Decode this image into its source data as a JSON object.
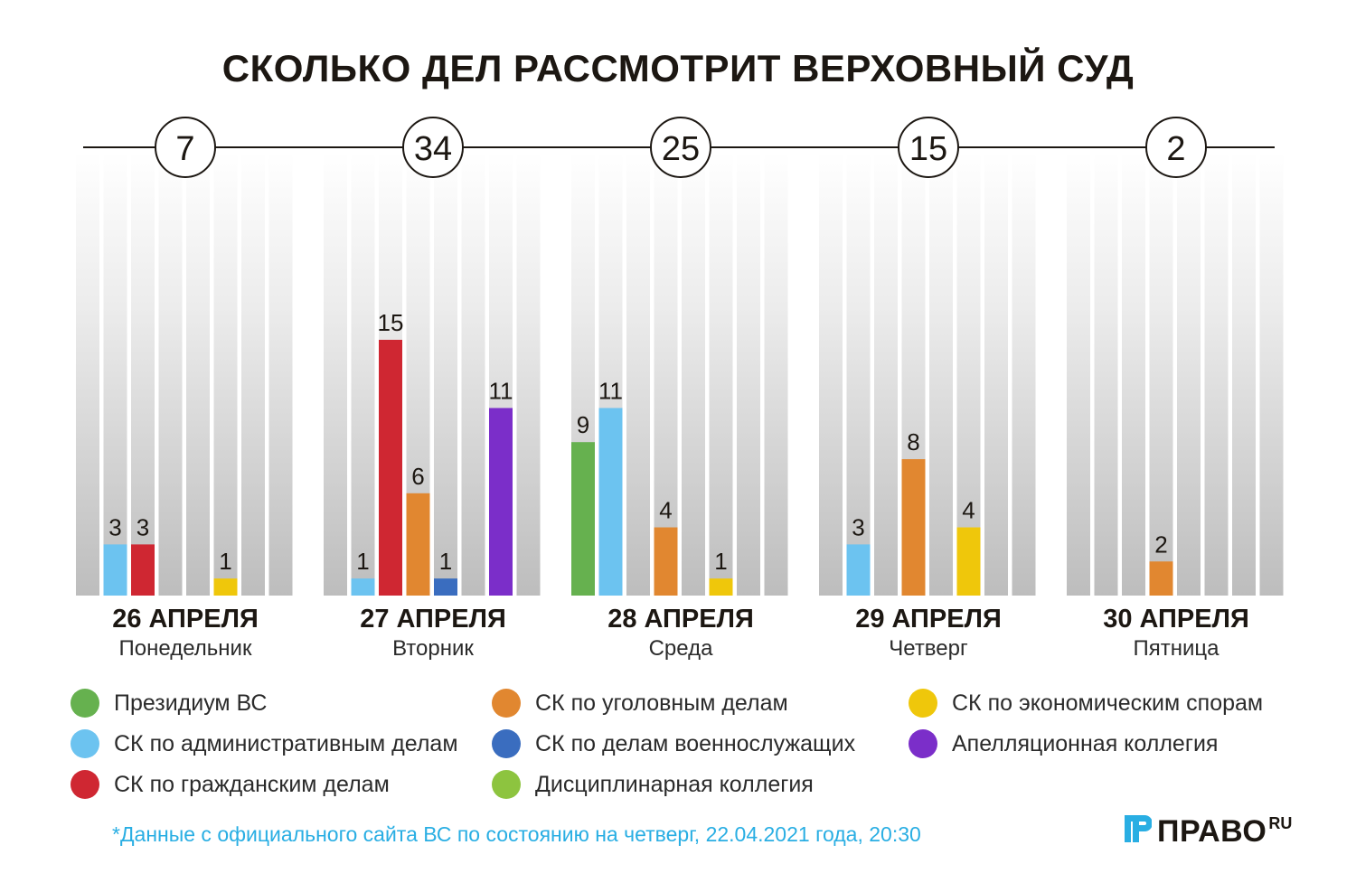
{
  "title": "СКОЛЬКО ДЕЛ РАССМОТРИТ ВЕРХОВНЫЙ СУД",
  "chart_data": {
    "type": "bar",
    "title": "СКОЛЬКО ДЕЛ РАССМОТРИТ ВЕРХОВНЫЙ СУД",
    "ylim": [
      0,
      15
    ],
    "series": [
      {
        "name": "Президиум ВС",
        "color": "#66b14f"
      },
      {
        "name": "СК по административным делам",
        "color": "#6cc3f0"
      },
      {
        "name": "СК по гражданским делам",
        "color": "#cf2732"
      },
      {
        "name": "СК по уголовным делам",
        "color": "#e18730"
      },
      {
        "name": "СК по делам военнослужащих",
        "color": "#3a6dbf"
      },
      {
        "name": "СК по экономическим спорам",
        "color": "#efc70b"
      },
      {
        "name": "Апелляционная коллегия",
        "color": "#7b2ec9"
      },
      {
        "name": "Дисциплинарная коллегия",
        "color": "#8dc43f"
      }
    ],
    "days": [
      {
        "date": "26 АПРЕЛЯ",
        "weekday": "Понедельник",
        "total": "7",
        "values": [
          null,
          3,
          3,
          null,
          null,
          1,
          null,
          null
        ]
      },
      {
        "date": "27 АПРЕЛЯ",
        "weekday": "Вторник",
        "total": "34",
        "values": [
          null,
          1,
          15,
          6,
          1,
          null,
          11,
          null
        ]
      },
      {
        "date": "28 АПРЕЛЯ",
        "weekday": "Среда",
        "total": "25",
        "values": [
          9,
          11,
          null,
          4,
          null,
          1,
          null,
          null
        ]
      },
      {
        "date": "29 АПРЕЛЯ",
        "weekday": "Четверг",
        "total": "15",
        "values": [
          null,
          3,
          null,
          8,
          null,
          4,
          null,
          null
        ]
      },
      {
        "date": "30 АПРЕЛЯ",
        "weekday": "Пятница",
        "total": "2",
        "values": [
          null,
          null,
          null,
          2,
          null,
          null,
          null,
          null
        ]
      }
    ],
    "legend": [
      [
        "Президиум ВС",
        "СК по административным делам",
        "СК по гражданским делам"
      ],
      [
        "СК по уголовным делам",
        "СК по делам военнослужащих",
        "Дисциплинарная коллегия"
      ],
      [
        "СК по экономическим спорам",
        "Апелляционная коллегия"
      ]
    ]
  },
  "footnote": "*Данные с официального сайта ВС по состоянию на четверг, 22.04.2021 года, 20:30",
  "logo": {
    "text": "ПРАВО",
    "suffix": "RU",
    "color": "#29aee3"
  }
}
